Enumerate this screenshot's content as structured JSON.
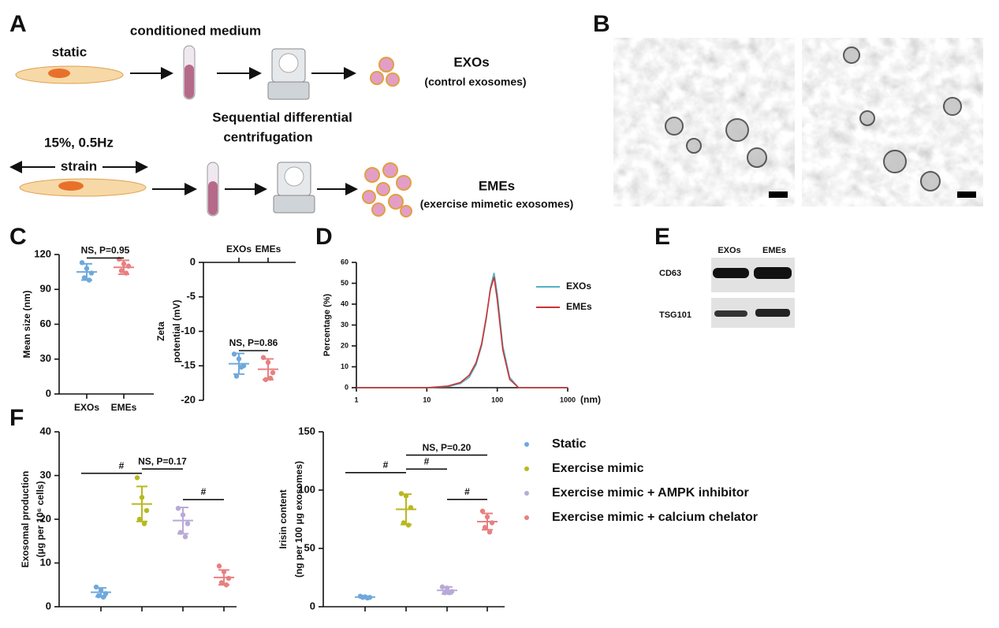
{
  "panel_labels": [
    "A",
    "B",
    "C",
    "D",
    "E",
    "F"
  ],
  "schematic": {
    "static_label": "static",
    "conditioned_medium": "conditioned medium",
    "exos_title": "EXOs",
    "exos_sub": "(control exosomes)",
    "centrifugation": [
      "Sequential differential",
      "centrifugation"
    ],
    "strain_params": "15%, 0.5Hz",
    "strain_label": "strain",
    "emes_title": "EMEs",
    "emes_sub": "(exercise mimetic exosomes)"
  },
  "blot": {
    "columns": [
      "EXOs",
      "EMEs"
    ],
    "rows": [
      "CD63",
      "TSG101"
    ]
  },
  "chart_data": [
    {
      "type": "dot",
      "ylabel": [
        "Mean size (nm)"
      ],
      "categories": [
        "EXOs",
        "EMEs"
      ],
      "x_axis_position": "bottom",
      "ylim": [
        0,
        120
      ],
      "yticks": [
        0,
        30,
        60,
        90,
        120
      ],
      "series": [
        {
          "color": "#6fa8dc",
          "points": [
            113,
            108,
            104,
            100,
            98
          ],
          "mean": 105,
          "sd": 7
        },
        {
          "color": "#e88080",
          "points": [
            116,
            112,
            110,
            106,
            104
          ],
          "mean": 109,
          "sd": 6
        }
      ],
      "annotations": [
        {
          "from": 0,
          "to": 1,
          "y": 117,
          "label": "NS, P=0.95"
        }
      ]
    },
    {
      "type": "dot",
      "ylabel": [
        "Zeta",
        "potential (mV)"
      ],
      "categories": [
        "EXOs",
        "EMEs"
      ],
      "x_axis_position": "top",
      "ylim": [
        -20,
        0
      ],
      "yticks": [
        0,
        -5,
        -10,
        -15,
        -20
      ],
      "series": [
        {
          "color": "#6fa8dc",
          "points": [
            -13.3,
            -14,
            -15,
            -16.5,
            -15.2
          ],
          "mean": -14.7,
          "sd": 1.5
        },
        {
          "color": "#e88080",
          "points": [
            -13.8,
            -14.5,
            -16,
            -17,
            -16.8
          ],
          "mean": -15.5,
          "sd": 1.5
        }
      ],
      "annotations": [
        {
          "from": 0,
          "to": 1,
          "y": -12.8,
          "label": "NS, P=0.86"
        }
      ]
    },
    {
      "type": "line",
      "ylabel": [
        "Percentage (%)"
      ],
      "xlabel": "(nm)",
      "xscale": "log",
      "xlim": [
        1,
        1000
      ],
      "xticks": [
        1,
        10,
        100,
        1000
      ],
      "ylim": [
        0,
        60
      ],
      "yticks": [
        0,
        10,
        20,
        30,
        40,
        50,
        60
      ],
      "legend": "right",
      "x": [
        1,
        10,
        20,
        30,
        40,
        50,
        60,
        70,
        80,
        90,
        100,
        120,
        150,
        200,
        1000
      ],
      "series": [
        {
          "name": "EXOs",
          "color": "#4fb3c4",
          "values": [
            0,
            0,
            0.5,
            2,
            5,
            11,
            20,
            33,
            48,
            55,
            45,
            20,
            5,
            0,
            0
          ]
        },
        {
          "name": "EMEs",
          "color": "#d03030",
          "values": [
            0,
            0,
            0.8,
            2.5,
            6,
            12,
            21,
            34,
            47,
            53,
            42,
            18,
            4,
            0,
            0
          ]
        }
      ]
    },
    {
      "type": "dot",
      "ylabel": [
        "Exosomal production",
        "(μg per 10⁶ cells)"
      ],
      "categories": [
        null,
        null,
        null,
        null
      ],
      "x_axis_position": "bottom",
      "ylim": [
        0,
        40
      ],
      "yticks": [
        0,
        10,
        20,
        30,
        40
      ],
      "legend": "outside-right",
      "series": [
        {
          "name": "Static",
          "color": "#6fa8dc",
          "points": [
            4.5,
            3.8,
            3.0,
            2.5,
            2.2
          ],
          "mean": 3.3,
          "sd": 1
        },
        {
          "name": "Exercise mimic",
          "color": "#b8b820",
          "points": [
            29.5,
            25,
            22,
            20,
            19
          ],
          "mean": 23.5,
          "sd": 4
        },
        {
          "name": "Exercise mimic + AMPK inhibitor",
          "color": "#b9a9d8",
          "points": [
            22.5,
            21,
            19,
            17,
            16
          ],
          "mean": 19.7,
          "sd": 3
        },
        {
          "name": "Exercise mimic + calcium chelator",
          "color": "#e88080",
          "points": [
            9.3,
            8,
            6.5,
            5.5,
            5
          ],
          "mean": 6.7,
          "sd": 1.7
        }
      ],
      "annotations": [
        {
          "from": 0,
          "to": 1,
          "y": 30.5,
          "label": "#"
        },
        {
          "from": 1,
          "to": 2,
          "y": 31.5,
          "label": "NS, P=0.17"
        },
        {
          "from": 2,
          "to": 3,
          "y": 24.5,
          "label": "#"
        }
      ]
    },
    {
      "type": "dot",
      "ylabel": [
        "Irisin content",
        "(ng per 100 μg exosomes)"
      ],
      "categories": [
        null,
        null,
        null,
        null
      ],
      "x_axis_position": "bottom",
      "ylim": [
        0,
        150
      ],
      "yticks": [
        0,
        50,
        100,
        150
      ],
      "series": [
        {
          "color": "#6fa8dc",
          "points": [
            9,
            8.5,
            8,
            8,
            7.5
          ],
          "mean": 8.3,
          "sd": 0.6
        },
        {
          "color": "#b8b820",
          "points": [
            97,
            95,
            85,
            72,
            70
          ],
          "mean": 83.5,
          "sd": 13
        },
        {
          "color": "#b9a9d8",
          "points": [
            17,
            16,
            13,
            12,
            12
          ],
          "mean": 14,
          "sd": 3
        },
        {
          "color": "#e88080",
          "points": [
            82,
            77,
            72,
            68,
            64
          ],
          "mean": 73,
          "sd": 7
        }
      ],
      "annotations": [
        {
          "from": 0,
          "to": 1,
          "y": 115,
          "label": "#"
        },
        {
          "from": 1,
          "to": 2,
          "y": 118,
          "label": "#"
        },
        {
          "from": 1,
          "to": 3,
          "y": 130,
          "label": "NS, P=0.20"
        },
        {
          "from": 2,
          "to": 3,
          "y": 92,
          "label": "#"
        }
      ]
    }
  ]
}
